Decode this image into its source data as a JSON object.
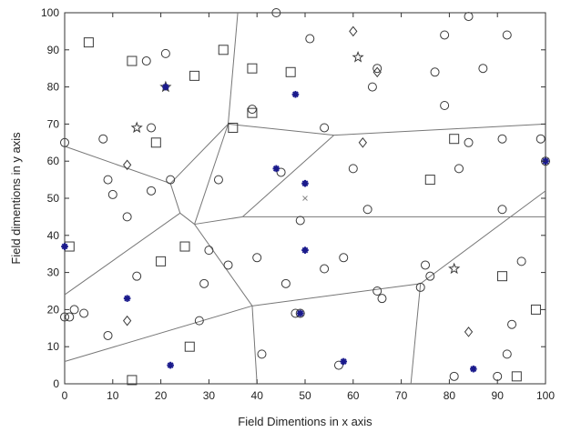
{
  "chart_data": {
    "type": "scatter",
    "title": "",
    "xlabel": "Field Dimentions in x axis",
    "ylabel": "Field dimentions in y axis",
    "xlim": [
      0,
      100
    ],
    "ylim": [
      0,
      100
    ],
    "xticks": [
      "0",
      "10",
      "20",
      "30",
      "40",
      "50",
      "60",
      "70",
      "80",
      "90",
      "100"
    ],
    "yticks": [
      "0",
      "10",
      "20",
      "30",
      "40",
      "50",
      "60",
      "70",
      "80",
      "90",
      "100"
    ],
    "grid": false,
    "legend": "none",
    "colors": {
      "markers": "#3a3a3a",
      "cluster_heads": "#1a1a8c",
      "boundaries": "#777777",
      "sink": "#888888"
    },
    "boundaries": [
      [
        [
          36,
          100
        ],
        [
          34,
          70
        ]
      ],
      [
        [
          34,
          70
        ],
        [
          22,
          54
        ]
      ],
      [
        [
          22,
          54
        ],
        [
          0,
          64
        ]
      ],
      [
        [
          22,
          54
        ],
        [
          24,
          46
        ]
      ],
      [
        [
          24,
          46
        ],
        [
          0,
          24
        ]
      ],
      [
        [
          24,
          46
        ],
        [
          27,
          43
        ]
      ],
      [
        [
          27,
          43
        ],
        [
          34,
          70
        ]
      ],
      [
        [
          34,
          70
        ],
        [
          56,
          67
        ]
      ],
      [
        [
          56,
          67
        ],
        [
          100,
          70
        ]
      ],
      [
        [
          56,
          67
        ],
        [
          37,
          45
        ]
      ],
      [
        [
          37,
          45
        ],
        [
          27,
          43
        ]
      ],
      [
        [
          37,
          45
        ],
        [
          100,
          45
        ]
      ],
      [
        [
          27,
          43
        ],
        [
          39,
          21
        ]
      ],
      [
        [
          39,
          21
        ],
        [
          0,
          6
        ]
      ],
      [
        [
          39,
          21
        ],
        [
          40,
          0
        ]
      ],
      [
        [
          39,
          21
        ],
        [
          74,
          27
        ]
      ],
      [
        [
          74,
          27
        ],
        [
          72,
          0
        ]
      ],
      [
        [
          74,
          27
        ],
        [
          100,
          52
        ]
      ]
    ],
    "circles": [
      [
        0,
        65
      ],
      [
        8,
        66
      ],
      [
        9,
        55
      ],
      [
        10,
        51
      ],
      [
        13,
        45
      ],
      [
        15,
        29
      ],
      [
        17,
        87
      ],
      [
        18,
        52
      ],
      [
        18,
        69
      ],
      [
        21,
        89
      ],
      [
        22,
        55
      ],
      [
        29,
        27
      ],
      [
        30,
        36
      ],
      [
        32,
        55
      ],
      [
        34,
        32
      ],
      [
        39,
        74
      ],
      [
        40,
        34
      ],
      [
        41,
        8
      ],
      [
        44,
        100
      ],
      [
        45,
        57
      ],
      [
        46,
        27
      ],
      [
        48,
        19
      ],
      [
        49,
        19
      ],
      [
        49,
        44
      ],
      [
        51,
        93
      ],
      [
        54,
        31
      ],
      [
        54,
        69
      ],
      [
        57,
        5
      ],
      [
        58,
        34
      ],
      [
        60,
        58
      ],
      [
        63,
        47
      ],
      [
        64,
        80
      ],
      [
        65,
        85
      ],
      [
        65,
        25
      ],
      [
        66,
        23
      ],
      [
        74,
        26
      ],
      [
        75,
        32
      ],
      [
        76,
        29
      ],
      [
        77,
        84
      ],
      [
        79,
        75
      ],
      [
        79,
        94
      ],
      [
        81,
        2
      ],
      [
        82,
        58
      ],
      [
        84,
        65
      ],
      [
        84,
        99
      ],
      [
        87,
        85
      ],
      [
        90,
        2
      ],
      [
        91,
        66
      ],
      [
        91,
        47
      ],
      [
        92,
        8
      ],
      [
        92,
        94
      ],
      [
        93,
        16
      ],
      [
        95,
        33
      ],
      [
        99,
        66
      ],
      [
        100,
        60
      ],
      [
        1,
        18
      ],
      [
        2,
        20
      ],
      [
        4,
        19
      ],
      [
        9,
        13
      ],
      [
        28,
        17
      ],
      [
        0,
        18
      ]
    ],
    "squares": [
      [
        1,
        37
      ],
      [
        5,
        92
      ],
      [
        14,
        1
      ],
      [
        14,
        87
      ],
      [
        19,
        65
      ],
      [
        20,
        33
      ],
      [
        25,
        37
      ],
      [
        26,
        10
      ],
      [
        27,
        83
      ],
      [
        33,
        90
      ],
      [
        35,
        69
      ],
      [
        39,
        73
      ],
      [
        39,
        85
      ],
      [
        47,
        84
      ],
      [
        76,
        55
      ],
      [
        81,
        66
      ],
      [
        91,
        29
      ],
      [
        94,
        2
      ],
      [
        98,
        20
      ]
    ],
    "diamonds": [
      [
        13,
        17
      ],
      [
        13,
        59
      ],
      [
        60,
        95
      ],
      [
        62,
        65
      ],
      [
        65,
        84
      ],
      [
        84,
        14
      ]
    ],
    "stars": [
      [
        15,
        69
      ],
      [
        21,
        80
      ],
      [
        61,
        88
      ],
      [
        81,
        31
      ]
    ],
    "asterisks": [
      [
        0,
        37
      ],
      [
        13,
        23
      ],
      [
        21,
        80
      ],
      [
        22,
        5
      ],
      [
        44,
        58
      ],
      [
        48,
        78
      ],
      [
        50,
        54
      ],
      [
        50,
        36
      ],
      [
        58,
        6
      ],
      [
        85,
        4
      ],
      [
        100,
        60
      ],
      [
        49,
        19
      ]
    ],
    "sink": [
      [
        50,
        50
      ]
    ]
  }
}
